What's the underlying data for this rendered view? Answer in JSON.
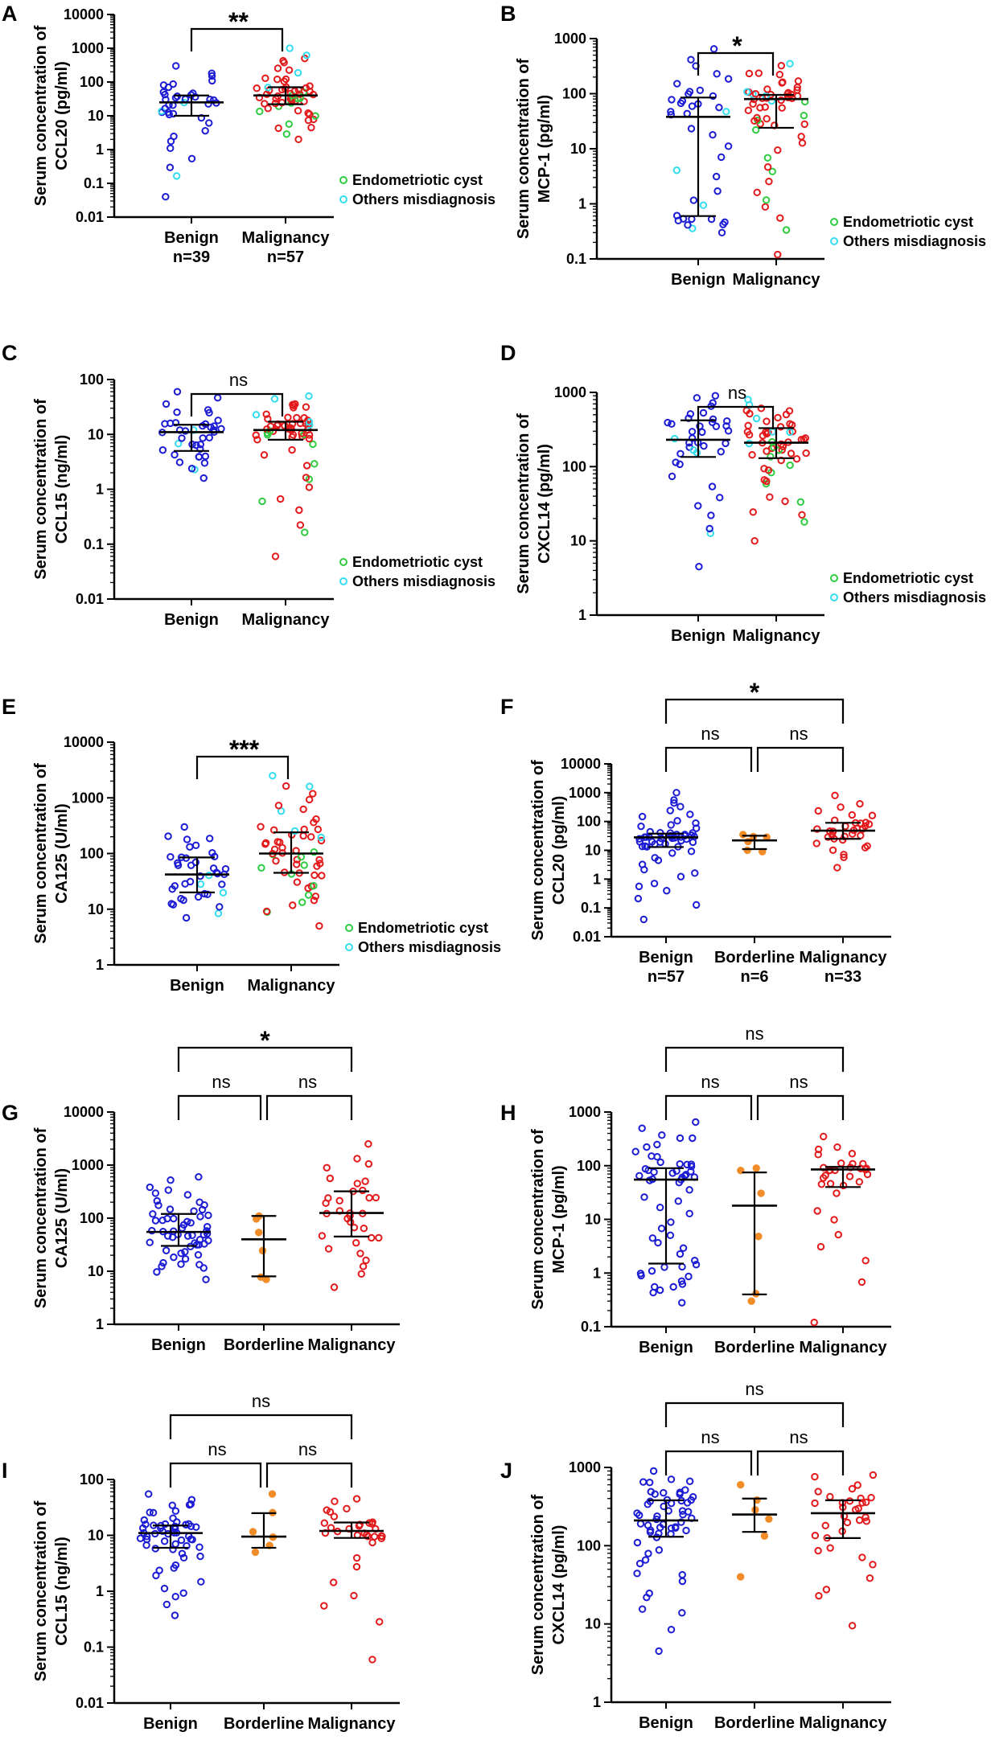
{
  "colors": {
    "benign": "#1c1cd4",
    "borderline": "#f28c28",
    "malignancy": "#e31a1c",
    "endometriotic": "#2ecc40",
    "others": "#33ddee",
    "axis": "#000000"
  },
  "chart_data": [
    {
      "id": "A",
      "type": "scatter",
      "panel_label": "A",
      "ylabel": [
        "Serum concentration of",
        "CCL20 (pg/ml)"
      ],
      "yticks": [
        "0.01",
        "0.1",
        "1",
        "10",
        "100",
        "1000",
        "10000"
      ],
      "ylim": [
        0.01,
        10000
      ],
      "yscale": "log",
      "categories": [
        "Benign",
        "Malignancy"
      ],
      "sublabels": [
        "n=39",
        "n=57"
      ],
      "legend": [
        "Endometriotic cyst",
        "Others misdiagnosis"
      ],
      "comparisons": [
        {
          "a": 0,
          "b": 1,
          "label": "**",
          "level": 0
        }
      ],
      "groups": [
        {
          "name": "Benign",
          "median": 25,
          "q1": 10,
          "q3": 40,
          "n": 39,
          "min": 0.04,
          "max": 300,
          "special": [
            {
              "kind": "others",
              "n": 4
            }
          ]
        },
        {
          "name": "Malignancy",
          "median": 40,
          "q1": 22,
          "q3": 70,
          "n": 57,
          "min": 2,
          "max": 1000,
          "special": [
            {
              "kind": "endometriotic",
              "n": 10
            },
            {
              "kind": "others",
              "n": 8
            }
          ]
        }
      ]
    },
    {
      "id": "B",
      "type": "scatter",
      "panel_label": "B",
      "ylabel": [
        "Serum concentration of",
        "MCP-1 (pg/ml)"
      ],
      "yticks": [
        "0.1",
        "1",
        "10",
        "100",
        "1000"
      ],
      "ylim": [
        0.1,
        1000
      ],
      "yscale": "log",
      "categories": [
        "Benign",
        "Malignancy"
      ],
      "sublabels": [],
      "legend": [
        "Endometriotic cyst",
        "Others misdiagnosis"
      ],
      "comparisons": [
        {
          "a": 0,
          "b": 1,
          "label": "*",
          "level": 0
        }
      ],
      "groups": [
        {
          "name": "Benign",
          "median": 38,
          "q1": 0.6,
          "q3": 85,
          "n": 39,
          "min": 0.3,
          "max": 650,
          "special": [
            {
              "kind": "others",
              "n": 5
            }
          ]
        },
        {
          "name": "Malignancy",
          "median": 80,
          "q1": 24,
          "q3": 95,
          "n": 57,
          "min": 0.12,
          "max": 350,
          "special": [
            {
              "kind": "endometriotic",
              "n": 8
            },
            {
              "kind": "others",
              "n": 9
            }
          ]
        }
      ]
    },
    {
      "id": "C",
      "type": "scatter",
      "panel_label": "C",
      "ylabel": [
        "Serum concentration of",
        "CCL15 (ng/ml)"
      ],
      "yticks": [
        "0.01",
        "0.1",
        "1",
        "10",
        "100"
      ],
      "ylim": [
        0.01,
        100
      ],
      "yscale": "log",
      "categories": [
        "Benign",
        "Malignancy"
      ],
      "sublabels": [],
      "legend": [
        "Endometriotic cyst",
        "Others misdiagnosis"
      ],
      "comparisons": [
        {
          "a": 0,
          "b": 1,
          "label": "ns",
          "level": 0
        }
      ],
      "groups": [
        {
          "name": "Benign",
          "median": 11,
          "q1": 5,
          "q3": 15,
          "n": 39,
          "min": 1.6,
          "max": 60,
          "special": [
            {
              "kind": "others",
              "n": 4
            }
          ]
        },
        {
          "name": "Malignancy",
          "median": 12,
          "q1": 8,
          "q3": 17,
          "n": 57,
          "min": 0.06,
          "max": 50,
          "special": [
            {
              "kind": "endometriotic",
              "n": 9
            },
            {
              "kind": "others",
              "n": 9
            }
          ]
        }
      ]
    },
    {
      "id": "D",
      "type": "scatter",
      "panel_label": "D",
      "ylabel": [
        "Serum concentration of",
        "CXCL14 (pg/ml)"
      ],
      "yticks": [
        "1",
        "10",
        "100",
        "1000"
      ],
      "ylim": [
        1,
        1000
      ],
      "yscale": "log",
      "categories": [
        "Benign",
        "Malignancy"
      ],
      "sublabels": [],
      "legend": [
        "Endometriotic cyst",
        "Others misdiagnosis"
      ],
      "comparisons": [
        {
          "a": 0,
          "b": 1,
          "label": "ns",
          "level": 0
        }
      ],
      "groups": [
        {
          "name": "Benign",
          "median": 230,
          "q1": 135,
          "q3": 420,
          "n": 39,
          "min": 4.5,
          "max": 900,
          "special": [
            {
              "kind": "others",
              "n": 5
            }
          ]
        },
        {
          "name": "Malignancy",
          "median": 210,
          "q1": 130,
          "q3": 330,
          "n": 57,
          "min": 10,
          "max": 800,
          "special": [
            {
              "kind": "endometriotic",
              "n": 9
            },
            {
              "kind": "others",
              "n": 10
            }
          ]
        }
      ]
    },
    {
      "id": "E",
      "type": "scatter",
      "panel_label": "E",
      "ylabel": [
        "Serum concentration of",
        "CA125 (U/ml)"
      ],
      "yticks": [
        "1",
        "10",
        "100",
        "1000",
        "10000"
      ],
      "ylim": [
        1,
        10000
      ],
      "yscale": "log",
      "categories": [
        "Benign",
        "Malignancy"
      ],
      "sublabels": [],
      "legend": [
        "Endometriotic cyst",
        "Others misdiagnosis"
      ],
      "comparisons": [
        {
          "a": 0,
          "b": 1,
          "label": "***",
          "level": 0
        }
      ],
      "groups": [
        {
          "name": "Benign",
          "median": 42,
          "q1": 20,
          "q3": 85,
          "n": 39,
          "min": 7,
          "max": 300,
          "special": [
            {
              "kind": "others",
              "n": 5
            }
          ]
        },
        {
          "name": "Malignancy",
          "median": 100,
          "q1": 45,
          "q3": 240,
          "n": 57,
          "min": 5,
          "max": 2500,
          "special": [
            {
              "kind": "endometriotic",
              "n": 10
            },
            {
              "kind": "others",
              "n": 9
            }
          ]
        }
      ]
    },
    {
      "id": "F",
      "type": "scatter",
      "panel_label": "F",
      "ylabel": [
        "Serum concentration of",
        "CCL20 (pg/ml)"
      ],
      "yticks": [
        "0.01",
        "0.1",
        "1",
        "10",
        "100",
        "1000",
        "10000"
      ],
      "ylim": [
        0.01,
        10000
      ],
      "yscale": "log",
      "categories": [
        "Benign",
        "Borderline",
        "Malignancy"
      ],
      "sublabels": [
        "n=57",
        "n=6",
        "n=33"
      ],
      "legend": [],
      "comparisons": [
        {
          "a": 0,
          "b": 1,
          "label": "ns",
          "level": 0
        },
        {
          "a": 1,
          "b": 2,
          "label": "ns",
          "level": 0
        },
        {
          "a": 0,
          "b": 2,
          "label": "*",
          "level": 1
        }
      ],
      "groups": [
        {
          "name": "Benign",
          "median": 28,
          "q1": 13,
          "q3": 38,
          "n": 57,
          "min": 0.04,
          "max": 1000,
          "special": []
        },
        {
          "name": "Borderline",
          "median": 22,
          "q1": 11,
          "q3": 32,
          "n": 6,
          "min": 9,
          "max": 35,
          "special": []
        },
        {
          "name": "Malignancy",
          "median": 48,
          "q1": 25,
          "q3": 90,
          "n": 33,
          "min": 2.5,
          "max": 800,
          "special": []
        }
      ]
    },
    {
      "id": "G",
      "type": "scatter",
      "panel_label": "G",
      "ylabel": [
        "Serum concentration of",
        "CA125 (U/ml)"
      ],
      "yticks": [
        "1",
        "10",
        "100",
        "1000",
        "10000"
      ],
      "ylim": [
        1,
        10000
      ],
      "yscale": "log",
      "categories": [
        "Benign",
        "Borderline",
        "Malignancy"
      ],
      "sublabels": [],
      "legend": [],
      "comparisons": [
        {
          "a": 0,
          "b": 1,
          "label": "ns",
          "level": 0
        },
        {
          "a": 1,
          "b": 2,
          "label": "ns",
          "level": 0
        },
        {
          "a": 0,
          "b": 2,
          "label": "*",
          "level": 1
        }
      ],
      "groups": [
        {
          "name": "Benign",
          "median": 55,
          "q1": 30,
          "q3": 120,
          "n": 57,
          "min": 7,
          "max": 600,
          "special": []
        },
        {
          "name": "Borderline",
          "median": 40,
          "q1": 8,
          "q3": 110,
          "n": 6,
          "min": 7,
          "max": 110,
          "special": []
        },
        {
          "name": "Malignancy",
          "median": 125,
          "q1": 45,
          "q3": 320,
          "n": 33,
          "min": 5,
          "max": 2500,
          "special": []
        }
      ]
    },
    {
      "id": "H",
      "type": "scatter",
      "panel_label": "H",
      "ylabel": [
        "Serum concentration of",
        "MCP-1 (pg/ml)"
      ],
      "yticks": [
        "0.1",
        "1",
        "10",
        "100",
        "1000"
      ],
      "ylim": [
        0.1,
        1000
      ],
      "yscale": "log",
      "categories": [
        "Benign",
        "Borderline",
        "Malignancy"
      ],
      "sublabels": [],
      "legend": [],
      "comparisons": [
        {
          "a": 0,
          "b": 1,
          "label": "ns",
          "level": 0
        },
        {
          "a": 1,
          "b": 2,
          "label": "ns",
          "level": 0
        },
        {
          "a": 0,
          "b": 2,
          "label": "ns",
          "level": 1
        }
      ],
      "groups": [
        {
          "name": "Benign",
          "median": 55,
          "q1": 1.5,
          "q3": 90,
          "n": 57,
          "min": 0.28,
          "max": 650,
          "special": []
        },
        {
          "name": "Borderline",
          "median": 18,
          "q1": 0.4,
          "q3": 75,
          "n": 6,
          "min": 0.3,
          "max": 90,
          "special": []
        },
        {
          "name": "Malignancy",
          "median": 85,
          "q1": 40,
          "q3": 95,
          "n": 33,
          "min": 0.12,
          "max": 350,
          "special": []
        }
      ]
    },
    {
      "id": "I",
      "type": "scatter",
      "panel_label": "I",
      "ylabel": [
        "Serum concentration of",
        "CCL15 (ng/ml)"
      ],
      "yticks": [
        "0.01",
        "0.1",
        "1",
        "10",
        "100"
      ],
      "ylim": [
        0.01,
        100
      ],
      "yscale": "log",
      "categories": [
        "Benign",
        "Borderline",
        "Malignancy"
      ],
      "sublabels": [],
      "legend": [],
      "comparisons": [
        {
          "a": 0,
          "b": 1,
          "label": "ns",
          "level": 0
        },
        {
          "a": 1,
          "b": 2,
          "label": "ns",
          "level": 0
        },
        {
          "a": 0,
          "b": 2,
          "label": "ns",
          "level": 1
        }
      ],
      "groups": [
        {
          "name": "Benign",
          "median": 11,
          "q1": 6,
          "q3": 15,
          "n": 57,
          "min": 0.37,
          "max": 55,
          "special": []
        },
        {
          "name": "Borderline",
          "median": 9.5,
          "q1": 6,
          "q3": 25,
          "n": 6,
          "min": 5,
          "max": 55,
          "special": []
        },
        {
          "name": "Malignancy",
          "median": 12,
          "q1": 9,
          "q3": 17,
          "n": 33,
          "min": 0.06,
          "max": 45,
          "special": []
        }
      ]
    },
    {
      "id": "J",
      "type": "scatter",
      "panel_label": "J",
      "ylabel": [
        "Serum concentration of",
        "CXCL14 (pg/ml)"
      ],
      "yticks": [
        "1",
        "10",
        "100",
        "1000"
      ],
      "ylim": [
        1,
        1000
      ],
      "yscale": "log",
      "categories": [
        "Benign",
        "Borderline",
        "Malignancy"
      ],
      "sublabels": [],
      "legend": [],
      "comparisons": [
        {
          "a": 0,
          "b": 1,
          "label": "ns",
          "level": 0
        },
        {
          "a": 1,
          "b": 2,
          "label": "ns",
          "level": 0
        },
        {
          "a": 0,
          "b": 2,
          "label": "ns",
          "level": 1
        }
      ],
      "groups": [
        {
          "name": "Benign",
          "median": 210,
          "q1": 130,
          "q3": 380,
          "n": 57,
          "min": 4.5,
          "max": 900,
          "special": []
        },
        {
          "name": "Borderline",
          "median": 250,
          "q1": 150,
          "q3": 400,
          "n": 6,
          "min": 40,
          "max": 600,
          "special": []
        },
        {
          "name": "Malignancy",
          "median": 260,
          "q1": 125,
          "q3": 380,
          "n": 33,
          "min": 9.5,
          "max": 800,
          "special": []
        }
      ]
    }
  ]
}
